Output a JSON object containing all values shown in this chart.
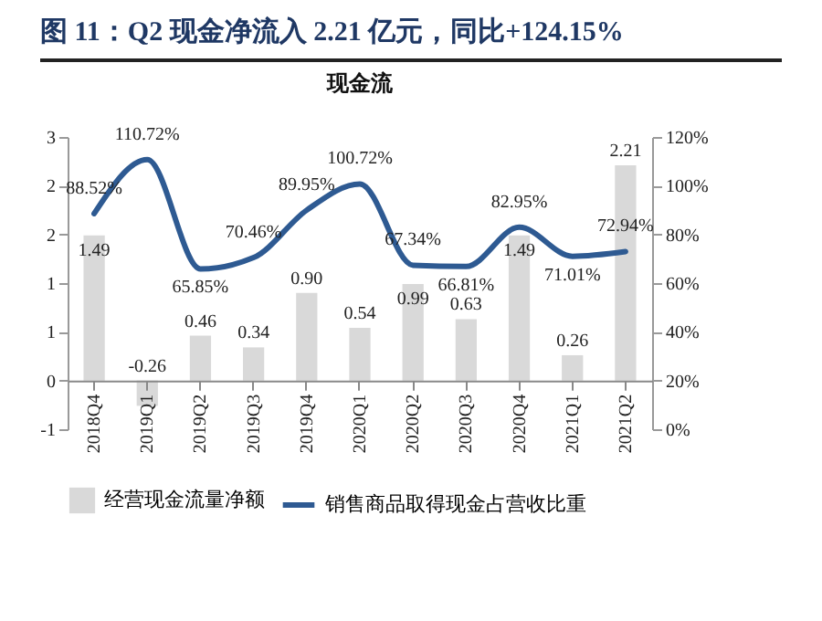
{
  "chart_data": {
    "type": "bar",
    "title": "图 11：Q2 现金净流入 2.21 亿元，同比+124.15%",
    "subtitle": "现金流",
    "categories": [
      "2018Q4",
      "2019Q1",
      "2019Q2",
      "2019Q3",
      "2019Q4",
      "2020Q1",
      "2020Q2",
      "2020Q3",
      "2020Q4",
      "2021Q1",
      "2021Q2"
    ],
    "series": [
      {
        "name": "经营现金流量净额",
        "type": "bar",
        "color": "#d9d9d9",
        "values": [
          1.49,
          -0.26,
          0.46,
          0.34,
          0.9,
          0.54,
          0.99,
          0.63,
          1.49,
          0.26,
          2.21
        ],
        "value_labels": [
          "1.49",
          "-0.26",
          "0.46",
          "0.34",
          "0.90",
          "0.54",
          "0.99",
          "0.63",
          "1.49",
          "0.26",
          "2.21"
        ]
      },
      {
        "name": "销售商品取得现金占营收比重",
        "type": "line",
        "axis": "y2",
        "color": "#2e5a92",
        "values": [
          88.52,
          110.72,
          65.85,
          70.46,
          89.95,
          100.72,
          67.34,
          66.81,
          82.95,
          71.01,
          72.94
        ],
        "value_labels": [
          "88.52%",
          "110.72%",
          "65.85%",
          "70.46%",
          "89.95%",
          "100.72%",
          "67.34%",
          "66.81%",
          "82.95%",
          "71.01%",
          "72.94%"
        ]
      }
    ],
    "ylim": [
      -0.5,
      2.5
    ],
    "yticks": [
      {
        "value": -0.5,
        "label": "-1"
      },
      {
        "value": 0,
        "label": "0"
      },
      {
        "value": 0.5,
        "label": "1"
      },
      {
        "value": 1,
        "label": "1"
      },
      {
        "value": 1.5,
        "label": "2"
      },
      {
        "value": 2,
        "label": "2"
      },
      {
        "value": 2.5,
        "label": "3"
      }
    ],
    "y2lim": [
      0,
      120
    ],
    "y2ticks": [
      {
        "value": 0,
        "label": "0%"
      },
      {
        "value": 20,
        "label": "20%"
      },
      {
        "value": 40,
        "label": "40%"
      },
      {
        "value": 60,
        "label": "60%"
      },
      {
        "value": 80,
        "label": "80%"
      },
      {
        "value": 100,
        "label": "100%"
      },
      {
        "value": 120,
        "label": "120%"
      }
    ],
    "grid": false,
    "legend": "bottom"
  }
}
